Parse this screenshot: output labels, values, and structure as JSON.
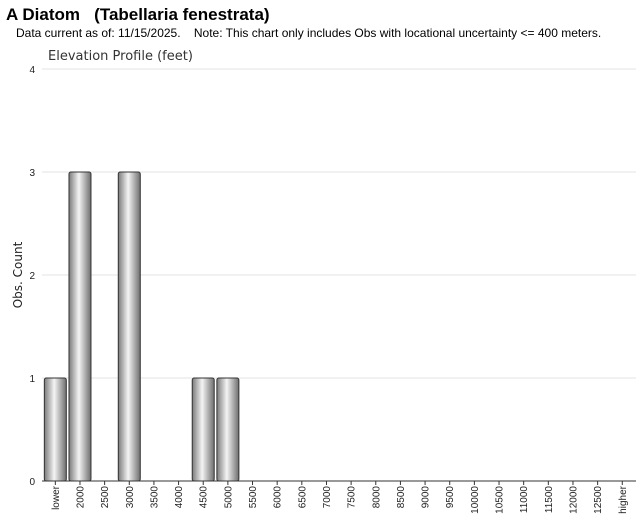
{
  "header": {
    "title": "A Diatom   (Tabellaria fenestrata)",
    "subtitle": "Data current as of: 11/15/2025.    Note: This chart only includes Obs with locational uncertainty <= 400 meters."
  },
  "chart_data": {
    "type": "bar",
    "title": "Elevation Profile (feet)",
    "xlabel": "",
    "ylabel": "Obs. Count",
    "ylim": [
      0,
      4
    ],
    "yticks": [
      "0",
      "1",
      "2",
      "3",
      "4"
    ],
    "grid": true,
    "categories": [
      "lower",
      "2000",
      "2500",
      "3000",
      "3500",
      "4000",
      "4500",
      "5000",
      "5500",
      "6000",
      "6500",
      "7000",
      "7500",
      "8000",
      "8500",
      "9000",
      "9500",
      "10000",
      "10500",
      "11000",
      "11500",
      "12000",
      "12500",
      "higher"
    ],
    "values": [
      1,
      3,
      0,
      3,
      0,
      0,
      1,
      1,
      0,
      0,
      0,
      0,
      0,
      0,
      0,
      0,
      0,
      0,
      0,
      0,
      0,
      0,
      0,
      0
    ],
    "bar_color": "#9a9a9a"
  }
}
